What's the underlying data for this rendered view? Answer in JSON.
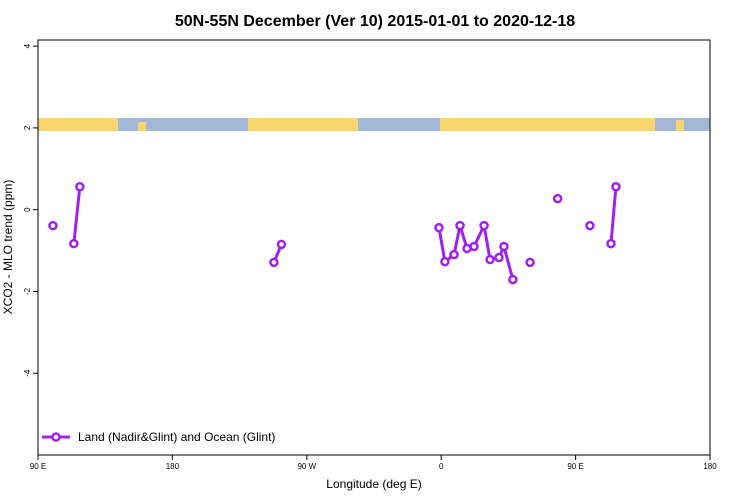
{
  "chart_data": {
    "type": "line",
    "title": "50N-55N December (Ver 10)   2015-01-01 to 2020-12-18",
    "xlabel": "Longitude (deg E)",
    "ylabel": "XCO2 - MLO trend (ppm)",
    "xlim": [
      90,
      540
    ],
    "ylim": [
      -6,
      4.15
    ],
    "xticks": [
      {
        "value": 90,
        "label": "90 E"
      },
      180,
      {
        "value": 270,
        "label": "90 W"
      },
      {
        "value": 360,
        "label": "0"
      },
      {
        "value": 450,
        "label": "90 E"
      },
      {
        "value": 540,
        "label": "180"
      }
    ],
    "yticks": [
      -4,
      -2,
      0,
      2,
      4
    ],
    "legend": "bottom-left",
    "series": [
      {
        "name": "Land (Nadir&Glint) and Ocean (Glint)",
        "color": "#a020f0",
        "x": [
          100,
          null,
          114,
          118,
          null,
          248,
          253,
          null,
          358.5,
          362.5,
          368.6,
          372.6,
          377.3,
          382,
          388.7,
          392.7,
          398.7,
          402,
          408,
          null,
          419.5,
          null,
          438,
          null,
          459.6,
          null,
          473.7,
          477
        ],
        "values": [
          -0.39,
          null,
          -0.83,
          0.56,
          null,
          -1.29,
          -0.85,
          null,
          -0.44,
          -1.27,
          -1.1,
          -0.39,
          -0.95,
          -0.9,
          -0.39,
          -1.22,
          -1.17,
          -0.9,
          -1.71,
          null,
          -1.29,
          null,
          0.27,
          null,
          -0.39,
          null,
          -0.83,
          0.56
        ]
      }
    ]
  }
}
